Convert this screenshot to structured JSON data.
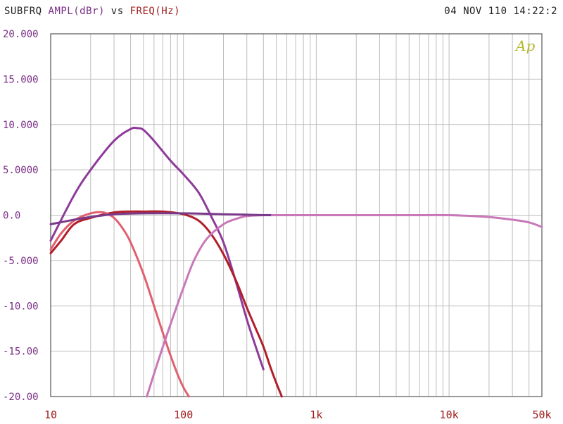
{
  "header": {
    "prefix": "SUBFRQ ",
    "y_label": "AMPL(dBr)",
    "vs": " vs ",
    "x_label": "FREQ(Hz)",
    "timestamp": "04 NOV 110 14:22:2",
    "logo": "Ap"
  },
  "colors": {
    "ylabel": "#7a2f86",
    "xlabel": "#a01c1c",
    "grid": "#bdbdbd",
    "axis": "#555555"
  },
  "chart_data": {
    "type": "line",
    "xscale": "log",
    "xlim": [
      10,
      50000
    ],
    "ylim": [
      -20,
      20
    ],
    "yticks": [
      {
        "value": 20,
        "label": "20.000"
      },
      {
        "value": 15,
        "label": "15.000"
      },
      {
        "value": 10,
        "label": "10.000"
      },
      {
        "value": 5,
        "label": "5.0000"
      },
      {
        "value": 0,
        "label": "0.0"
      },
      {
        "value": -5,
        "label": "-5.000"
      },
      {
        "value": -10,
        "label": "-10.00"
      },
      {
        "value": -15,
        "label": "-15.00"
      },
      {
        "value": -20,
        "label": "-20.00"
      }
    ],
    "xticks": [
      {
        "value": 10,
        "label": "10"
      },
      {
        "value": 100,
        "label": "100"
      },
      {
        "value": 1000,
        "label": "1k"
      },
      {
        "value": 10000,
        "label": "10k"
      },
      {
        "value": 50000,
        "label": "50k"
      }
    ],
    "grid": true,
    "series": [
      {
        "color": "#8e3a9a",
        "x": [
          10,
          15,
          20,
          30,
          40,
          45,
          50,
          60,
          80,
          100,
          130,
          160,
          200,
          250,
          300,
          350,
          400
        ],
        "y": [
          -2.8,
          2.2,
          5.0,
          8.2,
          9.5,
          9.6,
          9.4,
          8.2,
          6.0,
          4.5,
          2.5,
          0.0,
          -3.0,
          -7.5,
          -11.5,
          -14.5,
          -17.0
        ]
      },
      {
        "color": "#b01f2a",
        "x": [
          10,
          12,
          15,
          20,
          30,
          40,
          50,
          70,
          100,
          130,
          160,
          200,
          250,
          300,
          350,
          400,
          450,
          500,
          550
        ],
        "y": [
          -4.2,
          -2.8,
          -1.0,
          -0.3,
          0.3,
          0.4,
          0.4,
          0.4,
          0.1,
          -0.6,
          -2.0,
          -4.3,
          -7.3,
          -10.2,
          -12.5,
          -14.5,
          -16.7,
          -18.5,
          -20.0
        ]
      },
      {
        "color": "#e06070",
        "x": [
          10,
          12,
          15,
          20,
          25,
          30,
          35,
          40,
          50,
          60,
          70,
          80,
          90,
          100,
          110
        ],
        "y": [
          -3.8,
          -2.0,
          -0.6,
          0.2,
          0.3,
          -0.3,
          -1.5,
          -3.0,
          -6.5,
          -10.0,
          -13.0,
          -15.5,
          -17.5,
          -19.0,
          -20.0
        ]
      },
      {
        "color": "#c878b8",
        "x": [
          53,
          60,
          70,
          80,
          100,
          120,
          150,
          200,
          250,
          300,
          400,
          500,
          1000,
          2000,
          5000,
          10000,
          15000,
          20000,
          30000,
          40000,
          50000
        ],
        "y": [
          -20.0,
          -17.5,
          -14.5,
          -12.0,
          -8.0,
          -5.0,
          -2.6,
          -1.0,
          -0.4,
          -0.1,
          0.0,
          0.0,
          0.0,
          0.0,
          0.0,
          0.0,
          -0.1,
          -0.2,
          -0.5,
          -0.8,
          -1.3
        ]
      },
      {
        "color": "#7a3a8a",
        "x": [
          10,
          15,
          20,
          30,
          50,
          100,
          200,
          300,
          400,
          450
        ],
        "y": [
          -1.0,
          -0.5,
          -0.2,
          0.1,
          0.2,
          0.2,
          0.1,
          0.05,
          0.0,
          0.0
        ]
      }
    ]
  }
}
